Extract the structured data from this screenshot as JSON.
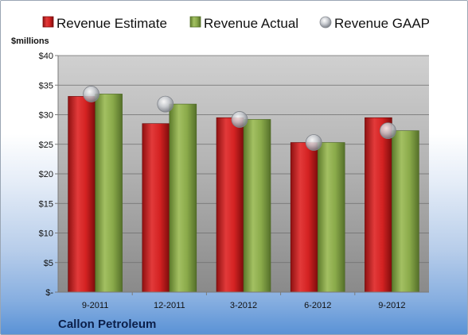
{
  "chart_data": {
    "type": "bar",
    "categories": [
      "9-2011",
      "12-2011",
      "3-2012",
      "6-2012",
      "9-2012"
    ],
    "series": [
      {
        "name": "Revenue Estimate",
        "kind": "bar",
        "color": "#d42a2a",
        "values": [
          33.1,
          28.5,
          29.5,
          25.3,
          29.5
        ]
      },
      {
        "name": "Revenue Actual",
        "kind": "bar",
        "color": "#8aaa4a",
        "values": [
          33.5,
          31.8,
          29.2,
          25.3,
          27.3
        ]
      },
      {
        "name": "Revenue GAAP",
        "kind": "marker",
        "color": "#b8bcc2",
        "values": [
          33.5,
          31.8,
          29.2,
          25.3,
          27.3
        ]
      }
    ],
    "ylabel": "$millions",
    "ylim": [
      0,
      40
    ],
    "yticks": [
      0,
      5,
      10,
      15,
      20,
      25,
      30,
      35,
      40
    ],
    "ytick_labels": [
      "$-",
      "$5",
      "$10",
      "$15",
      "$20",
      "$25",
      "$30",
      "$35",
      "$40"
    ],
    "grid": true,
    "legend": "top",
    "company": "Callon Petroleum"
  }
}
